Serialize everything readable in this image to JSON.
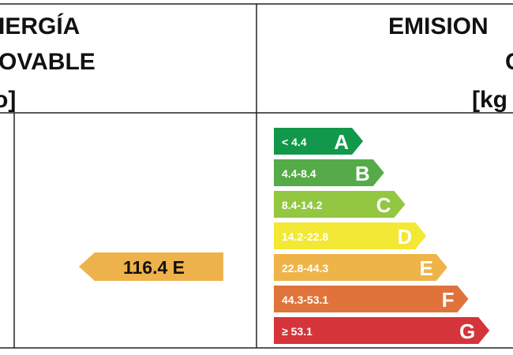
{
  "header": {
    "left": [
      "IERGÍA",
      "OVABLE",
      "o]"
    ],
    "right": [
      "EMISION",
      "C",
      "[kg"
    ]
  },
  "indicator": {
    "label": "116.4 E",
    "color": "#eeb24c"
  },
  "scale": [
    {
      "range": "< 4.4",
      "letter": "A",
      "color": "#12984a"
    },
    {
      "range": "4.4-8.4",
      "letter": "B",
      "color": "#55ab47"
    },
    {
      "range": "8.4-14.2",
      "letter": "C",
      "color": "#93c741"
    },
    {
      "range": "14.2-22.8",
      "letter": "D",
      "color": "#f3e833"
    },
    {
      "range": "22.8-44.3",
      "letter": "E",
      "color": "#efb449"
    },
    {
      "range": "44.3-53.1",
      "letter": "F",
      "color": "#e0733b"
    },
    {
      "range": "≥ 53.1",
      "letter": "G",
      "color": "#d5343a"
    }
  ]
}
